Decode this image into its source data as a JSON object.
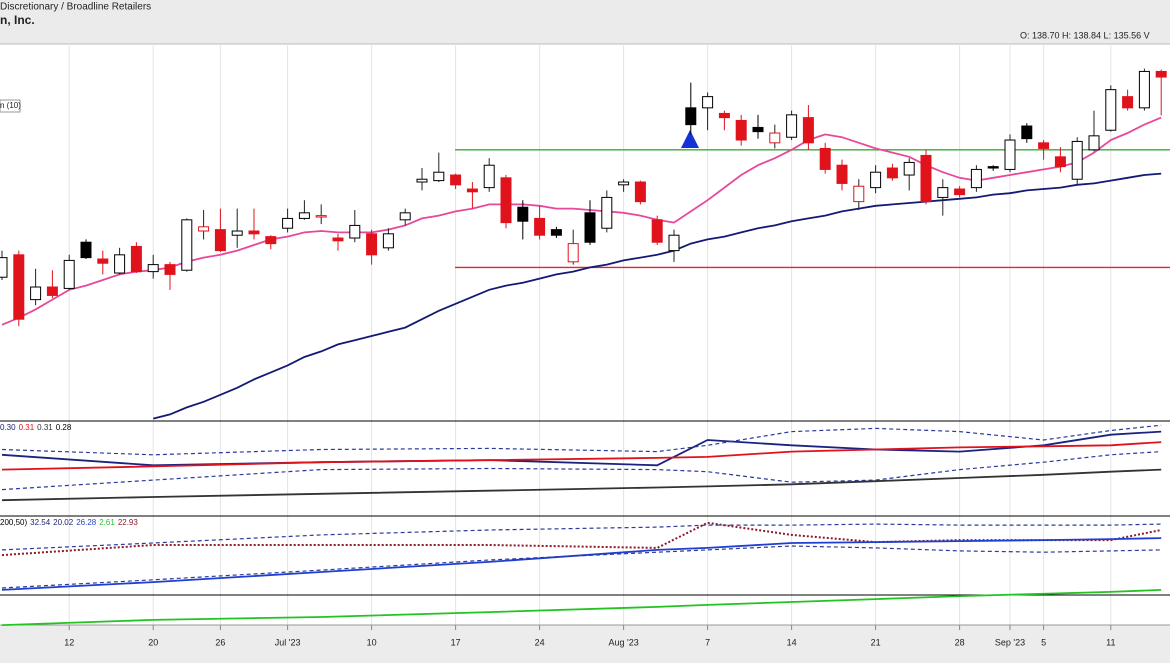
{
  "header": {
    "sector": "Discretionary / Broadline Retailers",
    "name": "n, Inc.",
    "ohlc": "O: 138.70   H: 138.84   L: 135.56   V"
  },
  "chart_data": {
    "type": "candlestick",
    "ma_label": "n (10)",
    "categories": [
      null,
      null,
      null,
      null,
      "12",
      null,
      null,
      null,
      null,
      "20",
      null,
      null,
      null,
      "26",
      null,
      null,
      null,
      "Jul '23",
      null,
      null,
      null,
      null,
      "10",
      null,
      null,
      null,
      null,
      "17",
      null,
      null,
      null,
      null,
      "24",
      null,
      null,
      null,
      null,
      "Aug '23",
      null,
      null,
      null,
      null,
      "7",
      null,
      null,
      null,
      null,
      "14",
      null,
      null,
      null,
      null,
      "21",
      null,
      null,
      null,
      null,
      "28",
      null,
      null,
      "Sep '23",
      null,
      "5",
      null,
      null,
      null,
      "11",
      null,
      null,
      null
    ],
    "open": [
      124.0,
      125.6,
      122.4,
      123.3,
      123.2,
      126.5,
      125.3,
      124.3,
      126.2,
      124.4,
      124.9,
      124.5,
      127.3,
      127.4,
      127.0,
      127.3,
      126.9,
      127.5,
      128.2,
      128.3,
      126.8,
      126.8,
      127.1,
      126.1,
      128.1,
      130.8,
      130.9,
      131.3,
      130.3,
      130.4,
      131.1,
      129.0,
      128.2,
      127.4,
      125.1,
      128.6,
      127.5,
      130.6,
      130.8,
      128.1,
      125.9,
      136.1,
      136.1,
      135.7,
      135.2,
      134.7,
      133.6,
      134.0,
      135.4,
      133.2,
      132.0,
      129.4,
      130.4,
      131.8,
      131.3,
      132.7,
      129.7,
      130.3,
      130.4,
      131.9,
      131.7,
      134.8,
      133.6,
      132.6,
      131.0,
      133.1,
      134.5,
      136.9,
      136.1,
      138.7
    ],
    "high": [
      125.9,
      125.9,
      124.6,
      124.5,
      125.6,
      126.7,
      125.9,
      126.1,
      126.5,
      125.6,
      125.1,
      128.2,
      128.8,
      128.9,
      128.9,
      128.9,
      127.0,
      128.9,
      129.5,
      129.2,
      127.1,
      128.8,
      127.4,
      127.5,
      128.9,
      131.8,
      132.9,
      131.4,
      130.8,
      132.5,
      131.3,
      129.5,
      129.1,
      127.6,
      127.4,
      129.5,
      130.2,
      131.0,
      130.9,
      128.4,
      127.4,
      137.9,
      137.2,
      135.9,
      135.6,
      135.6,
      134.9,
      135.9,
      136.3,
      133.6,
      132.4,
      131.0,
      132.0,
      132.1,
      132.5,
      133.1,
      131.0,
      130.5,
      132.0,
      132.0,
      134.2,
      135.0,
      133.8,
      133.3,
      134.0,
      135.9,
      137.7,
      137.4,
      138.9,
      138.84
    ],
    "low": [
      123.8,
      120.5,
      122.0,
      122.5,
      123.1,
      125.3,
      124.2,
      124.2,
      124.3,
      123.9,
      123.1,
      124.4,
      126.7,
      125.8,
      126.1,
      126.7,
      126.0,
      127.2,
      128.1,
      127.8,
      125.9,
      126.5,
      124.9,
      125.9,
      127.7,
      130.2,
      130.8,
      130.3,
      128.9,
      130.1,
      127.5,
      126.7,
      126.7,
      126.8,
      124.9,
      126.3,
      127.2,
      130.1,
      129.2,
      126.3,
      125.1,
      134.2,
      134.5,
      134.5,
      133.4,
      133.9,
      133.2,
      133.8,
      133.1,
      131.4,
      130.2,
      128.8,
      130.0,
      130.9,
      130.2,
      129.2,
      128.4,
      129.7,
      130.1,
      131.6,
      131.5,
      133.6,
      132.4,
      131.5,
      130.6,
      133.0,
      134.4,
      135.9,
      135.9,
      135.56
    ],
    "close": [
      125.4,
      121.0,
      123.3,
      122.7,
      125.2,
      125.4,
      125.0,
      125.6,
      124.4,
      124.9,
      124.2,
      128.1,
      127.6,
      125.9,
      127.3,
      127.1,
      126.4,
      128.2,
      128.6,
      128.4,
      126.6,
      127.7,
      125.6,
      127.1,
      128.6,
      131.0,
      131.5,
      130.6,
      130.1,
      132.0,
      127.9,
      128.0,
      127.0,
      127.0,
      126.4,
      126.5,
      129.7,
      130.8,
      129.4,
      126.5,
      127.0,
      134.9,
      136.9,
      135.4,
      133.8,
      134.4,
      134.3,
      135.6,
      133.6,
      131.7,
      130.7,
      130.5,
      131.5,
      131.1,
      132.2,
      129.4,
      130.4,
      129.9,
      131.7,
      131.8,
      133.8,
      133.9,
      133.2,
      131.9,
      133.7,
      134.1,
      137.4,
      136.1,
      138.7,
      138.3
    ],
    "ylim": [
      113.8,
      140.66
    ],
    "overlays": [
      {
        "color": "#e8489a",
        "values": [
          120.6,
          121.1,
          121.7,
          122.4,
          123.1,
          123.4,
          123.8,
          124.2,
          124.4,
          124.5,
          124.7,
          125.1,
          125.4,
          125.6,
          125.9,
          126.3,
          126.7,
          126.9,
          127.2,
          127.3,
          127.2,
          127.2,
          127.2,
          127.4,
          127.7,
          128.2,
          128.4,
          128.7,
          128.9,
          129.2,
          129.2,
          129.2,
          129.1,
          128.9,
          128.9,
          128.8,
          128.7,
          128.6,
          128.4,
          128.1,
          127.9,
          128.7,
          129.5,
          130.4,
          131.3,
          132.0,
          132.5,
          133.1,
          133.8,
          134.2,
          134.0,
          133.6,
          133.2,
          132.9,
          132.6,
          132.0,
          131.5,
          131.1,
          130.9,
          131.1,
          131.3,
          131.5,
          131.7,
          131.9,
          132.2,
          132.9,
          133.8,
          134.3,
          134.9,
          135.4
        ]
      },
      {
        "color": "#121a73",
        "values": [
          null,
          null,
          null,
          null,
          null,
          null,
          null,
          null,
          null,
          113.9,
          114.2,
          114.7,
          115.1,
          115.6,
          116.1,
          116.7,
          117.2,
          117.7,
          118.3,
          118.7,
          119.2,
          119.5,
          119.8,
          120.1,
          120.4,
          121.0,
          121.6,
          122.1,
          122.6,
          123.1,
          123.4,
          123.6,
          123.9,
          124.2,
          124.4,
          124.7,
          124.9,
          125.2,
          125.4,
          125.6,
          125.9,
          126.4,
          126.7,
          126.9,
          127.2,
          127.5,
          127.7,
          128.0,
          128.2,
          128.4,
          128.7,
          128.9,
          129.1,
          129.2,
          129.3,
          129.4,
          129.5,
          129.6,
          129.7,
          129.9,
          130.0,
          130.2,
          130.3,
          130.4,
          130.6,
          130.7,
          130.9,
          131.1,
          131.3,
          131.4
        ]
      }
    ],
    "levels": [
      {
        "value": 133.1,
        "color": "#3aa83a"
      },
      {
        "value": 124.7,
        "color": "#e8222a"
      }
    ],
    "panels": [
      {
        "ylim": [
          0.24,
          0.33
        ],
        "x": [
          0,
          9,
          19,
          29,
          39,
          42,
          47,
          52,
          57,
          62,
          66,
          69
        ],
        "legend": [
          {
            "text": "0.30",
            "color": "#1a237e"
          },
          {
            "text": "0.31",
            "color": "#e0121b"
          },
          {
            "text": "0.31",
            "color": "#333333"
          },
          {
            "text": "0.28",
            "color": "#000000"
          }
        ],
        "series": [
          {
            "color": "#1a237e",
            "style": "solid",
            "values": [
              0.298,
              0.288,
              0.291,
              0.293,
              0.288,
              0.312,
              0.307,
              0.303,
              0.301,
              0.307,
              0.317,
              0.32
            ]
          },
          {
            "color": "#e0121b",
            "style": "solid",
            "values": [
              0.284,
              0.287,
              0.291,
              0.293,
              0.295,
              0.296,
              0.301,
              0.303,
              0.305,
              0.306,
              0.307,
              0.31
            ]
          },
          {
            "color": "#2b3a9e",
            "style": "dashed",
            "values": [
              0.303,
              0.298,
              0.303,
              0.304,
              0.301,
              0.307,
              0.32,
              0.323,
              0.32,
              0.312,
              0.321,
              0.326
            ]
          },
          {
            "color": "#2b3a9e",
            "style": "dashed",
            "values": [
              0.265,
              0.274,
              0.284,
              0.285,
              0.284,
              0.282,
              0.272,
              0.274,
              0.284,
              0.291,
              0.298,
              0.301
            ]
          },
          {
            "color": "#333333",
            "style": "solid",
            "values": [
              0.255,
              0.258,
              0.261,
              0.264,
              0.267,
              0.268,
              0.27,
              0.273,
              0.276,
              0.279,
              0.282,
              0.284
            ]
          }
        ]
      },
      {
        "ylim": [
          0,
          35
        ],
        "x": [
          0,
          9,
          19,
          29,
          39,
          42,
          47,
          52,
          57,
          62,
          66,
          69
        ],
        "legend": [
          {
            "text": "200,50)",
            "color": "#000000"
          },
          {
            "text": "32.54",
            "color": "#1a237e"
          },
          {
            "text": "20.02",
            "color": "#1a237e"
          },
          {
            "text": "26.28",
            "color": "#1f3fd0"
          },
          {
            "text": "2.61",
            "color": "#22c422"
          },
          {
            "text": "22.93",
            "color": "#8b1a2b"
          }
        ],
        "series": [
          {
            "color": "#8b1a2b",
            "style": "dotted",
            "values": [
              23.0,
              26.1,
              26.1,
              26.1,
              25.2,
              32.9,
              29.2,
              27.0,
              27.6,
              27.6,
              27.6,
              30.7
            ]
          },
          {
            "color": "#1f3fd0",
            "style": "solid",
            "values": [
              12.3,
              14.7,
              17.8,
              20.9,
              24.6,
              25.2,
              26.7,
              27.0,
              27.3,
              27.6,
              27.9,
              28.2
            ]
          },
          {
            "color": "#2b3a9e",
            "style": "dashed",
            "values": [
              24.6,
              26.7,
              29.2,
              30.7,
              31.6,
              32.2,
              32.2,
              32.5,
              32.2,
              32.2,
              32.2,
              32.5
            ]
          },
          {
            "color": "#2b3a9e",
            "style": "dashed",
            "values": [
              12.9,
              15.4,
              18.4,
              21.5,
              23.9,
              24.6,
              25.8,
              25.2,
              24.3,
              23.9,
              24.3,
              24.6
            ]
          },
          {
            "color": "#22c422",
            "style": "solid",
            "values": [
              1.5,
              3.1,
              4.0,
              5.5,
              7.1,
              7.7,
              8.6,
              9.5,
              10.4,
              11.1,
              11.7,
              12.3
            ]
          }
        ]
      }
    ]
  }
}
